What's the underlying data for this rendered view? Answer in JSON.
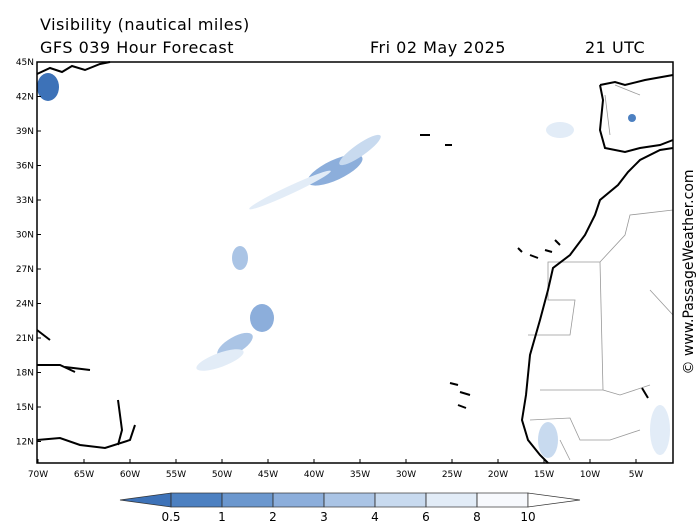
{
  "header": {
    "title": "Visibility (nautical miles)",
    "subtitle": "GFS 039 Hour Forecast",
    "date": "Fri 02 May 2025",
    "time": "21 UTC"
  },
  "map": {
    "lat_labels": [
      "45N",
      "42N",
      "39N",
      "36N",
      "33N",
      "30N",
      "27N",
      "24N",
      "21N",
      "18N",
      "15N",
      "12N"
    ],
    "lon_labels": [
      "70W",
      "65W",
      "60W",
      "55W",
      "50W",
      "45W",
      "40W",
      "35W",
      "30W",
      "25W",
      "20W",
      "15W",
      "10W",
      "5W"
    ]
  },
  "colorbar": {
    "ticks": [
      0.5,
      1,
      2,
      3,
      4,
      6,
      8,
      10
    ],
    "colors": [
      "#3d72b8",
      "#4c80c1",
      "#6b97ce",
      "#8caedb",
      "#aac4e5",
      "#c8daef",
      "#e2ecf7",
      "#f7f9fd",
      "#ffffff"
    ]
  },
  "watermark": "© www.PassageWeather.com"
}
